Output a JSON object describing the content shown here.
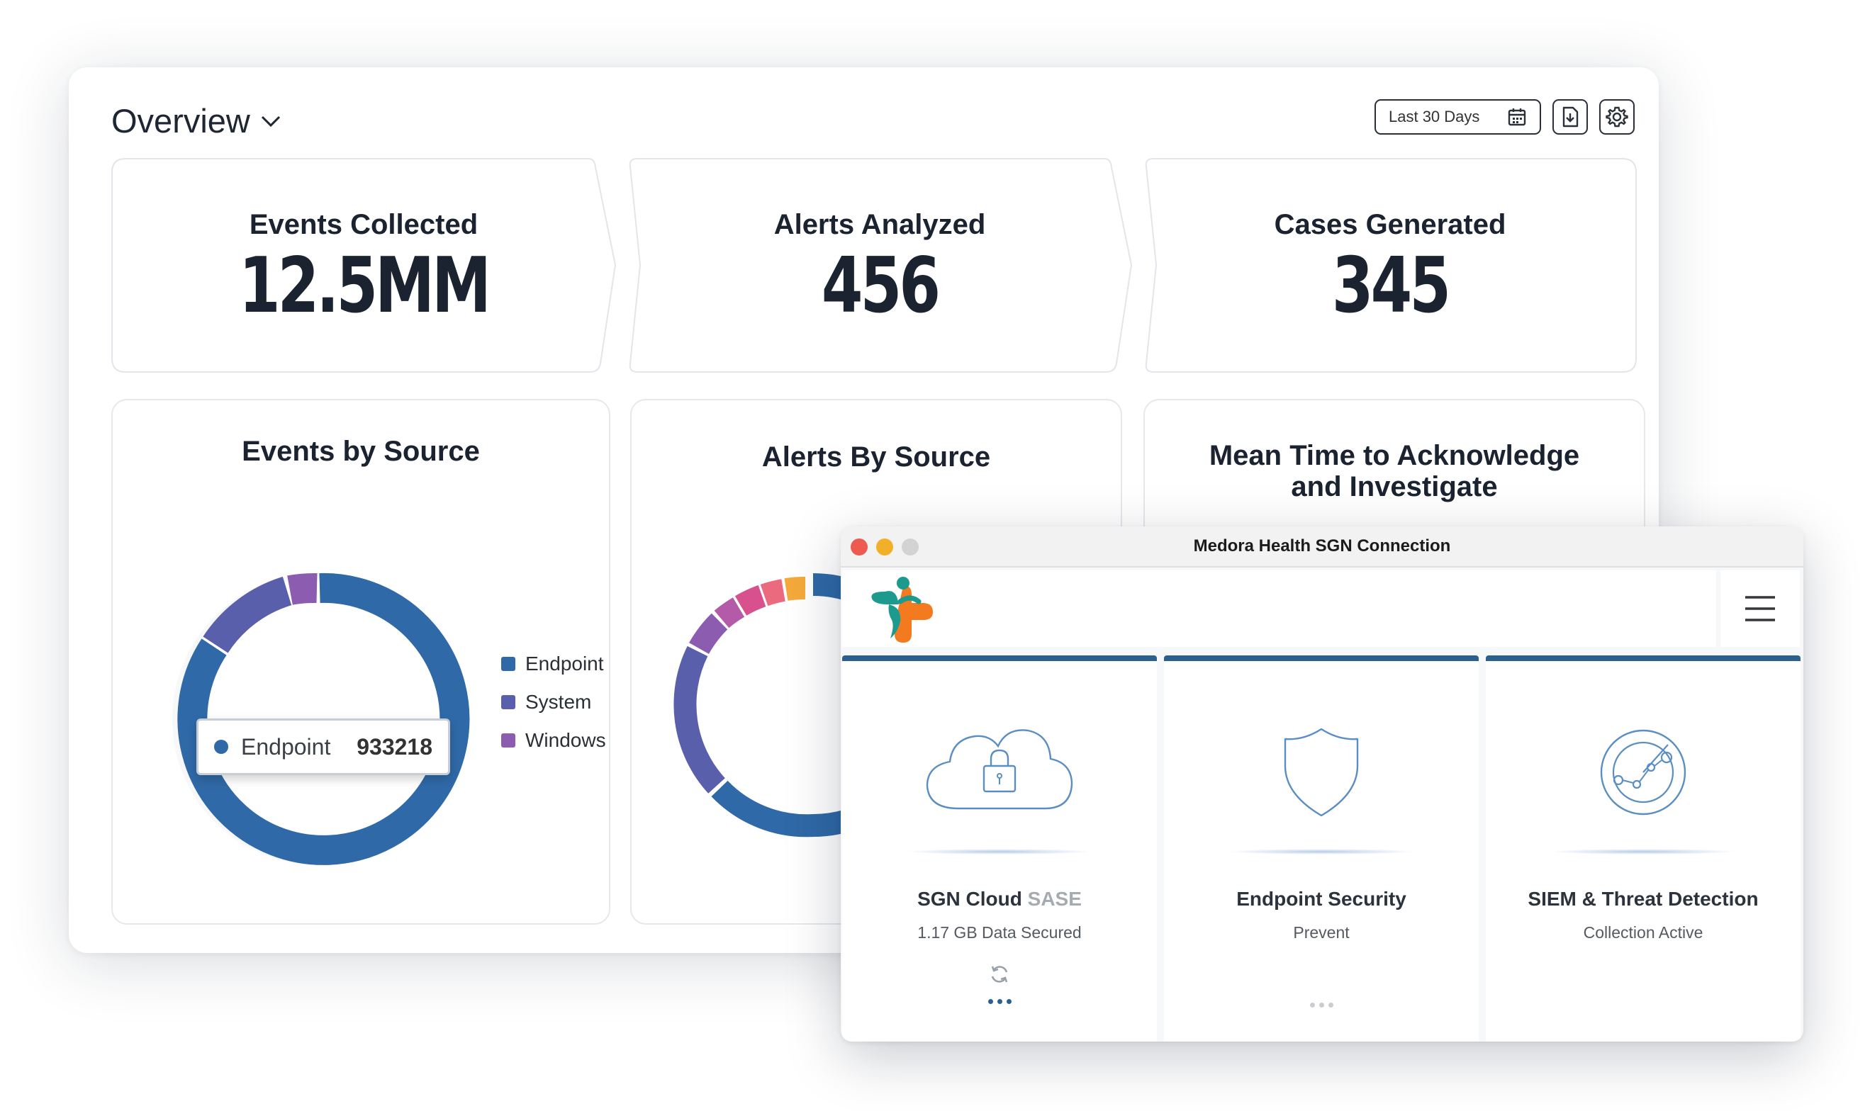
{
  "dashboard": {
    "title": "Overview",
    "toolbar": {
      "date_range": "Last 30 Days",
      "icons": [
        "calendar-icon",
        "download-icon",
        "gear-icon"
      ]
    },
    "stats": [
      {
        "label": "Events Collected",
        "value": "12.5MM"
      },
      {
        "label": "Alerts Analyzed",
        "value": "456"
      },
      {
        "label": "Cases Generated",
        "value": "345"
      }
    ],
    "cards": {
      "events_by_source": {
        "title": "Events by Source",
        "legend": [
          {
            "label": "Endpoint",
            "color": "#2f69a7"
          },
          {
            "label": "System",
            "color": "#5a5fab"
          },
          {
            "label": "Windows",
            "color": "#8b5cb0"
          }
        ],
        "tooltip": {
          "label": "Endpoint",
          "value": "933218"
        }
      },
      "alerts_by_source": {
        "title": "Alerts By Source"
      },
      "mtta": {
        "title_line1": "Mean Time to Acknowledge",
        "title_line2": "and Investigate"
      }
    }
  },
  "window": {
    "title": "Medora Health SGN Connection",
    "menu_icon": "hamburger-icon",
    "services": [
      {
        "name": "SGN Cloud",
        "name_suffix": "SASE",
        "status": "1.17 GB Data Secured",
        "icon": "cloud-lock-icon"
      },
      {
        "name": "Endpoint Security",
        "status": "Prevent",
        "icon": "shield-icon"
      },
      {
        "name": "SIEM & Threat Detection",
        "status": "Collection Active",
        "icon": "radar-icon"
      }
    ]
  },
  "colors": {
    "accent_blue": "#2a5f8f",
    "endpoint": "#2f69a7",
    "system": "#5a5fab",
    "windows": "#8b5cb0",
    "traffic_red": "#ef5a50",
    "traffic_yellow": "#f2b02a",
    "traffic_gray": "#d3d3d3",
    "icon_stroke": "#5b8ec2"
  }
}
